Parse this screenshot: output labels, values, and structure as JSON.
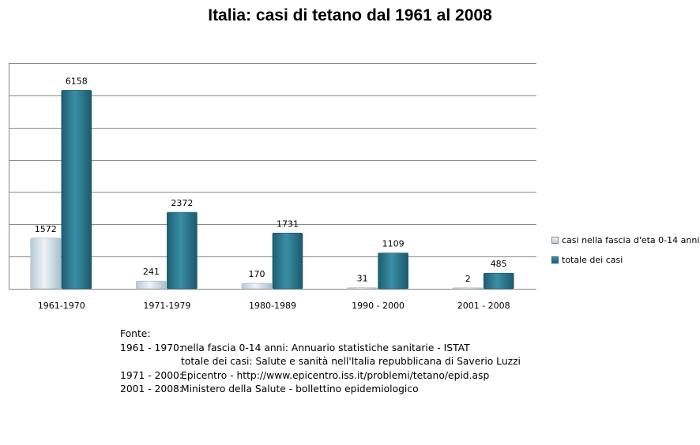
{
  "chart_data": {
    "type": "bar",
    "title": "Italia: casi di tetano dal 1961 al 2008",
    "categories": [
      "1961-1970",
      "1971-1979",
      "1980-1989",
      "1990 - 2000",
      "2001 - 2008"
    ],
    "series": [
      {
        "name": "casi nella fascia d'eta 0-14 anni",
        "values": [
          1572,
          241,
          170,
          31,
          2
        ],
        "color": "#c9d9e6"
      },
      {
        "name": "totale dei casi",
        "values": [
          6158,
          2372,
          1731,
          1109,
          485
        ],
        "color": "#2c7a91"
      }
    ],
    "xlabel": "",
    "ylabel": "",
    "ylim": [
      0,
      7000
    ],
    "grid": true,
    "legend": "right"
  },
  "source": {
    "heading": "Fonte:",
    "rows": [
      {
        "period": "1961 - 1970:",
        "text": "nella fascia 0-14 anni: Annuario statistiche sanitarie - ISTAT"
      },
      {
        "period": "",
        "text": "totale dei casi:  Salute e sanità nell'Italia repubblicana di Saverio Luzzi"
      },
      {
        "period": "1971 - 2000:",
        "text": "Epicentro - http://www.epicentro.iss.it/problemi/tetano/epid.asp"
      },
      {
        "period": "2001 - 2008:",
        "text": "Ministero della Salute - bollettino epidemiologico"
      }
    ]
  }
}
